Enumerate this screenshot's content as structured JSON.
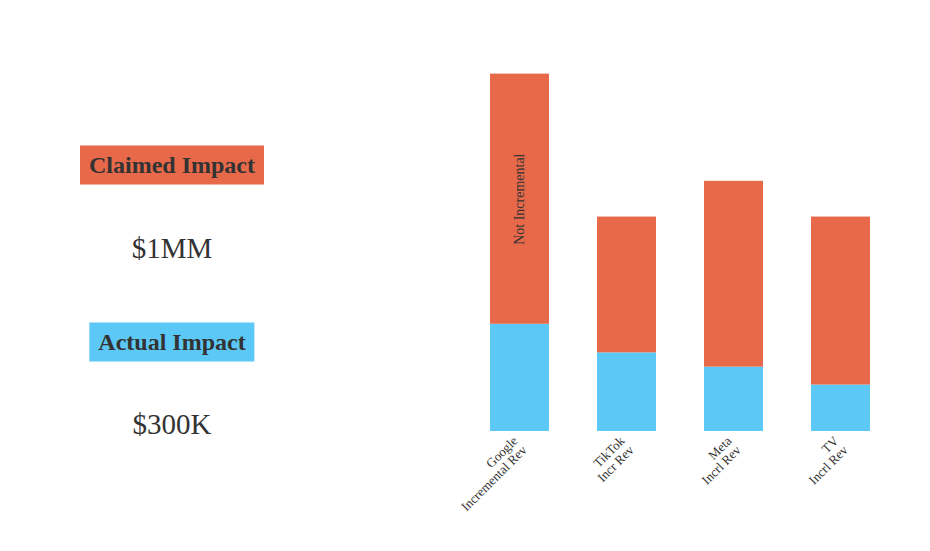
{
  "chart_data": {
    "type": "bar",
    "stacked": true,
    "categories": [
      "Google\nIncremental Rev",
      "TikTok\nIncr Rev",
      "Meta\nIncrl Rev",
      "TV\nIncrl Rev"
    ],
    "series": [
      {
        "color": "#5BC8F5",
        "values": [
          30,
          22,
          18,
          13
        ]
      },
      {
        "color": "#E8694A",
        "values": [
          70,
          38,
          52,
          47
        ]
      }
    ],
    "ylim": [
      0,
      115
    ],
    "tick_labels": "x",
    "annotations": [
      "Not Incremental",
      "Claimed Impact",
      "$1MM",
      "Actual Impact",
      "$300K"
    ]
  }
}
